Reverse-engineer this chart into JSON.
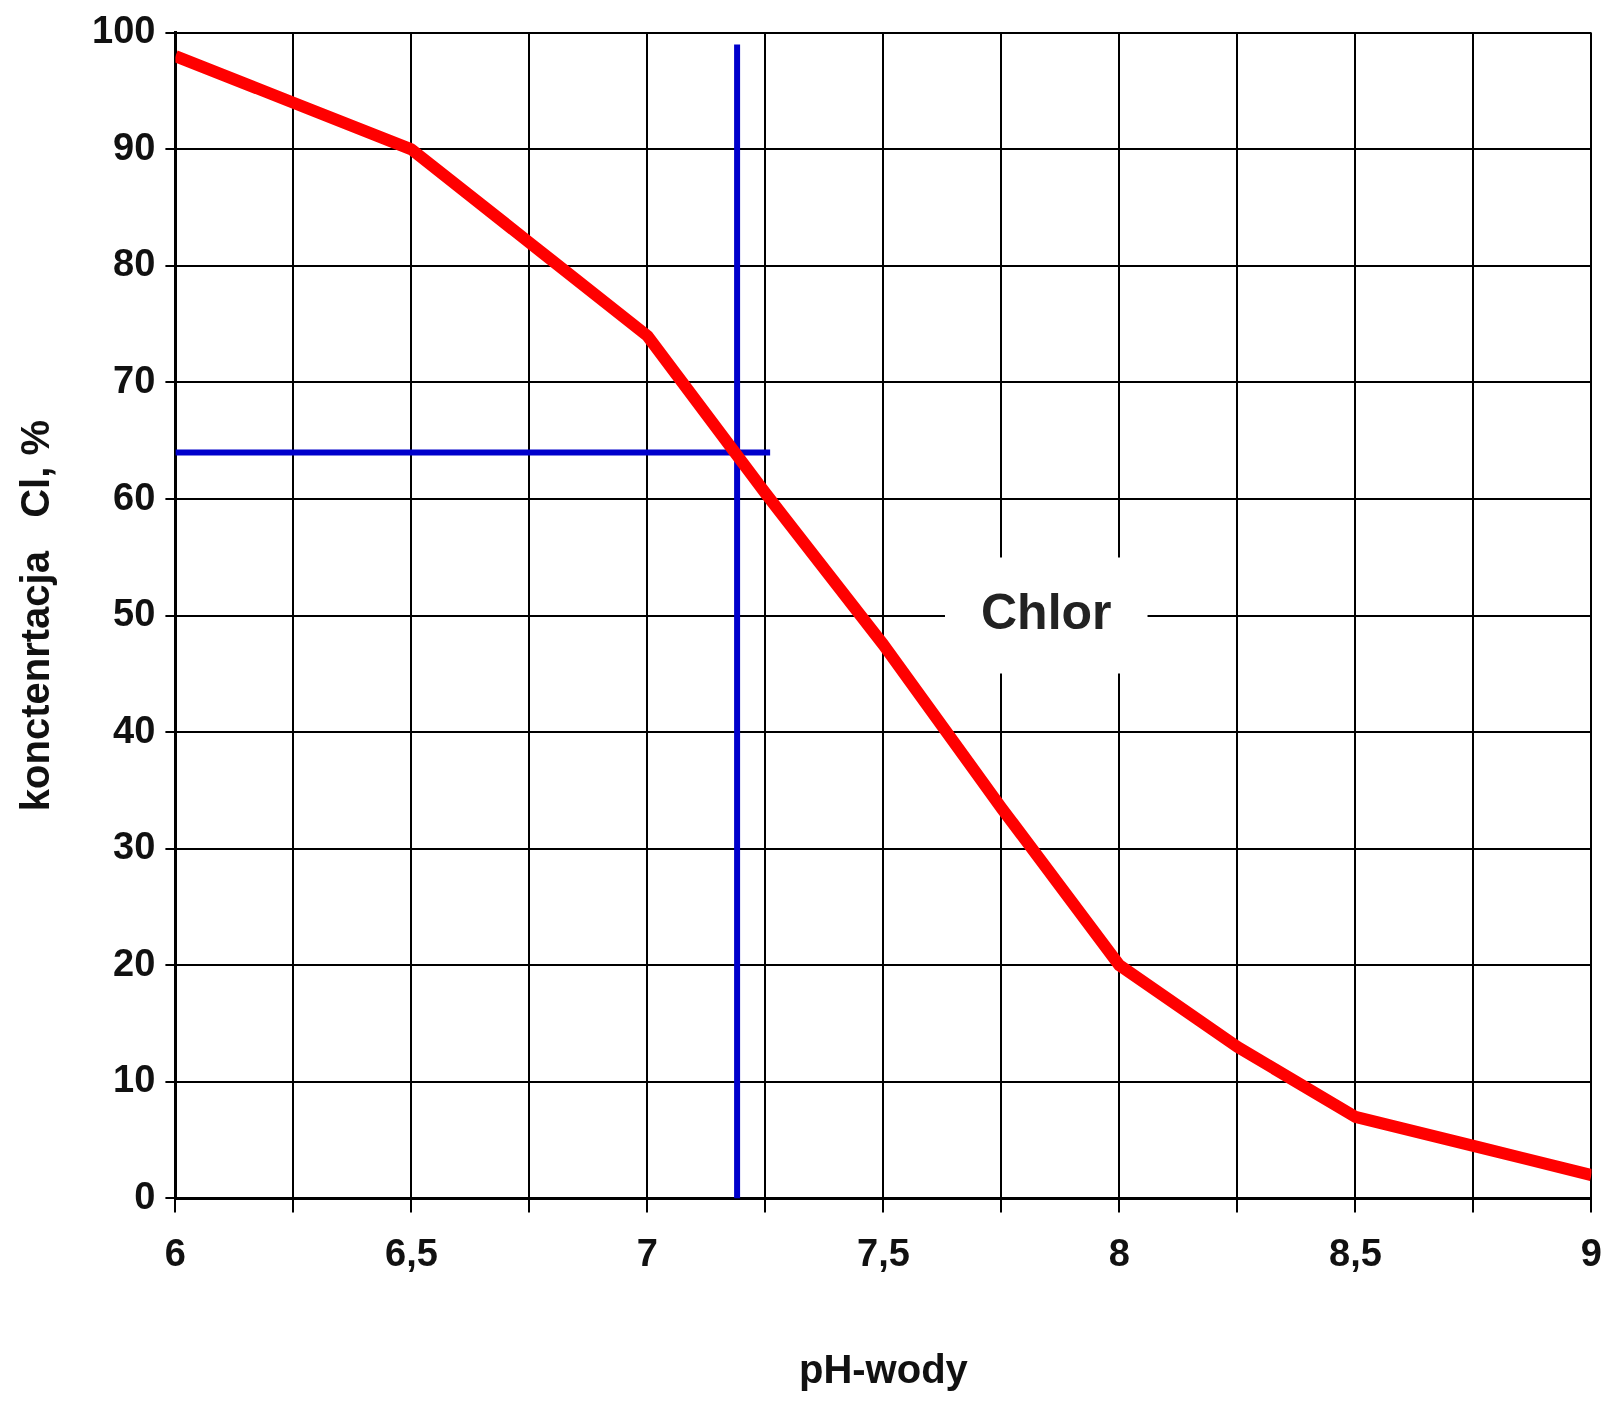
{
  "chart_data": {
    "type": "line",
    "xlabel": "pH-wody",
    "ylabel": "konctenrtacja   Cl, %",
    "x": [
      6,
      6.25,
      6.5,
      6.75,
      7,
      7.25,
      7.5,
      7.75,
      8,
      8.25,
      8.5,
      8.75,
      9
    ],
    "series": [
      {
        "color": "#ff0000",
        "values": [
          98,
          94,
          90,
          82,
          74,
          60.5,
          47.5,
          33.5,
          20,
          13,
          7,
          4.5,
          2
        ]
      },
      {
        "color": "#0000cc",
        "x": [
          6,
          7.26
        ],
        "values": [
          64,
          64
        ]
      },
      {
        "color": "#0000cc",
        "x": [
          7.19,
          7.19
        ],
        "values": [
          0,
          99
        ]
      }
    ],
    "xlim": [
      6,
      9
    ],
    "ylim": [
      0,
      100
    ],
    "xticks": [
      6,
      {
        "value": 6.25,
        "label": null
      },
      {
        "value": 6.5,
        "label": "6,5"
      },
      {
        "value": 6.75,
        "label": null
      },
      7,
      {
        "value": 7.25,
        "label": null
      },
      {
        "value": 7.5,
        "label": "7,5"
      },
      {
        "value": 7.75,
        "label": null
      },
      8,
      {
        "value": 8.25,
        "label": null
      },
      {
        "value": 8.5,
        "label": "8,5"
      },
      {
        "value": 8.75,
        "label": null
      },
      9
    ],
    "yticks": [
      0,
      10,
      20,
      30,
      40,
      50,
      60,
      70,
      80,
      90,
      100
    ],
    "grid": true,
    "marker": "none",
    "line_style": "solid",
    "annotations": [
      "Chlor"
    ]
  }
}
